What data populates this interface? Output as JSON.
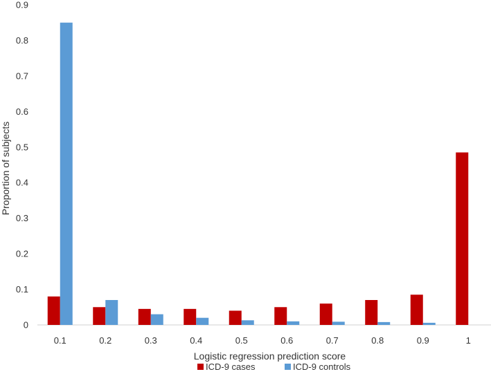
{
  "chart_data": {
    "type": "bar",
    "categories": [
      "0.1",
      "0.2",
      "0.3",
      "0.4",
      "0.5",
      "0.6",
      "0.7",
      "0.8",
      "0.9",
      "1"
    ],
    "series": [
      {
        "name": "ICD-9 cases",
        "color": "#c00000",
        "values": [
          0.08,
          0.05,
          0.045,
          0.045,
          0.04,
          0.05,
          0.06,
          0.07,
          0.085,
          0.485
        ]
      },
      {
        "name": "ICD-9 controls",
        "color": "#5b9bd5",
        "values": [
          0.85,
          0.07,
          0.03,
          0.02,
          0.013,
          0.01,
          0.009,
          0.008,
          0.006,
          0.0
        ]
      }
    ],
    "xlabel": "Logistic regression prediction score",
    "ylabel": "Proportion of subjects",
    "ylim": [
      0,
      0.9
    ],
    "yticks": [
      "0",
      "0.1",
      "0.2",
      "0.3",
      "0.4",
      "0.5",
      "0.6",
      "0.7",
      "0.8",
      "0.9"
    ],
    "grid": false,
    "legend": "bottom"
  }
}
